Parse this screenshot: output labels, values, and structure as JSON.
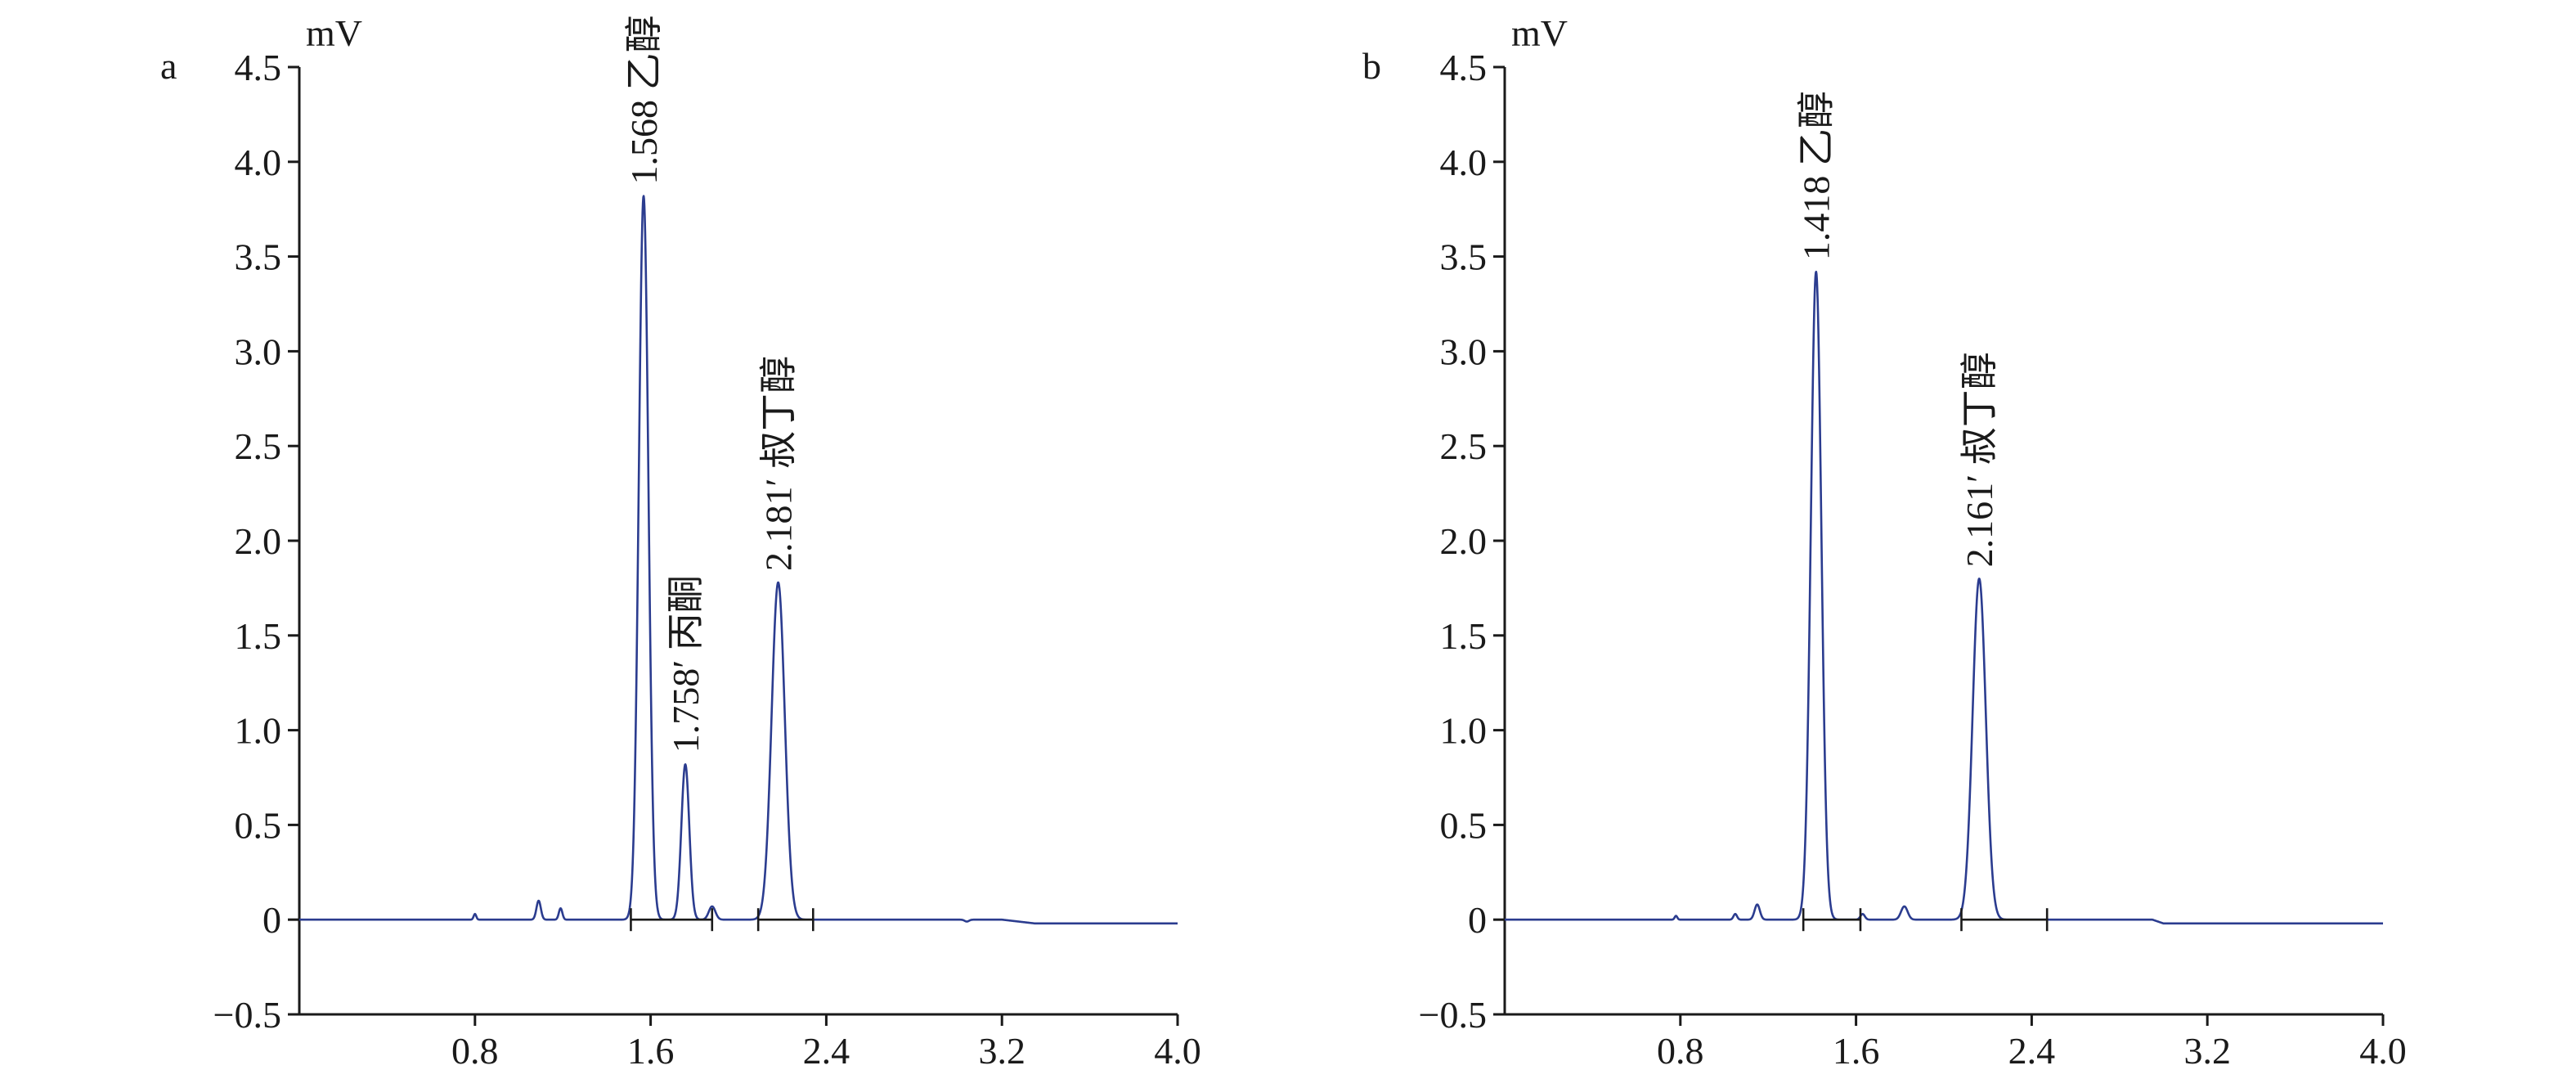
{
  "chart_data": [
    {
      "type": "line",
      "panel_label": "a",
      "ylabel": "mV",
      "xlabel": "",
      "xlim": [
        0.0,
        4.0
      ],
      "ylim": [
        -0.5,
        4.5
      ],
      "xticks": [
        0.8,
        1.6,
        2.4,
        3.2,
        4.0
      ],
      "xtick_labels": [
        "0.8",
        "1.6",
        "2.4",
        "3.2",
        "4.0"
      ],
      "yticks": [
        -0.5,
        0,
        0.5,
        1.0,
        1.5,
        2.0,
        2.5,
        3.0,
        3.5,
        4.0,
        4.5
      ],
      "ytick_labels": [
        "−0.5",
        "0",
        "0.5",
        "1.0",
        "1.5",
        "2.0",
        "2.5",
        "3.0",
        "3.5",
        "4.0",
        "4.5"
      ],
      "peaks": [
        {
          "x": 1.568,
          "y": 3.82,
          "width": 0.022,
          "label": "1.568 乙醇"
        },
        {
          "x": 1.758,
          "y": 0.82,
          "width": 0.018,
          "label": "1.758′ 丙酮"
        },
        {
          "x": 2.181,
          "y": 1.78,
          "width": 0.03,
          "label": "2.181′ 叔丁醇"
        }
      ],
      "minor_peaks": [
        {
          "x": 0.8,
          "y": 0.03,
          "width": 0.006
        },
        {
          "x": 1.09,
          "y": 0.1,
          "width": 0.01
        },
        {
          "x": 1.19,
          "y": 0.06,
          "width": 0.008
        },
        {
          "x": 1.88,
          "y": 0.07,
          "width": 0.015
        },
        {
          "x": 3.04,
          "y": -0.01,
          "width": 0.01
        }
      ],
      "baseline": [
        {
          "x": 0.0,
          "y": 0.0
        },
        {
          "x": 3.2,
          "y": 0.0
        },
        {
          "x": 3.35,
          "y": -0.02
        },
        {
          "x": 4.0,
          "y": -0.02
        }
      ],
      "integration_segments": [
        [
          1.51,
          1.88
        ],
        [
          2.09,
          2.34
        ]
      ],
      "integration_marks": [
        1.51,
        1.88,
        2.09,
        2.34
      ]
    },
    {
      "type": "line",
      "panel_label": "b",
      "ylabel": "mV",
      "xlabel": "",
      "xlim": [
        0.0,
        4.0
      ],
      "ylim": [
        -0.5,
        4.5
      ],
      "xticks": [
        0.8,
        1.6,
        2.4,
        3.2,
        4.0
      ],
      "xtick_labels": [
        "0.8",
        "1.6",
        "2.4",
        "3.2",
        "4.0"
      ],
      "yticks": [
        -0.5,
        0,
        0.5,
        1.0,
        1.5,
        2.0,
        2.5,
        3.0,
        3.5,
        4.0,
        4.5
      ],
      "ytick_labels": [
        "−0.5",
        "0",
        "0.5",
        "1.0",
        "1.5",
        "2.0",
        "2.5",
        "3.0",
        "3.5",
        "4.0",
        "4.5"
      ],
      "peaks": [
        {
          "x": 1.418,
          "y": 3.42,
          "width": 0.024,
          "label": "1.418 乙醇"
        },
        {
          "x": 2.161,
          "y": 1.8,
          "width": 0.03,
          "label": "2.161′ 叔丁醇"
        }
      ],
      "minor_peaks": [
        {
          "x": 0.78,
          "y": 0.02,
          "width": 0.006
        },
        {
          "x": 1.05,
          "y": 0.03,
          "width": 0.008
        },
        {
          "x": 1.15,
          "y": 0.08,
          "width": 0.012
        },
        {
          "x": 1.63,
          "y": 0.03,
          "width": 0.01
        },
        {
          "x": 1.82,
          "y": 0.07,
          "width": 0.015
        }
      ],
      "baseline": [
        {
          "x": 0.0,
          "y": 0.0
        },
        {
          "x": 2.95,
          "y": 0.0
        },
        {
          "x": 3.0,
          "y": -0.02
        },
        {
          "x": 4.0,
          "y": -0.02
        }
      ],
      "integration_segments": [
        [
          1.36,
          1.62
        ],
        [
          2.08,
          2.47
        ]
      ],
      "integration_marks": [
        1.36,
        1.62,
        2.08,
        2.47
      ]
    }
  ]
}
